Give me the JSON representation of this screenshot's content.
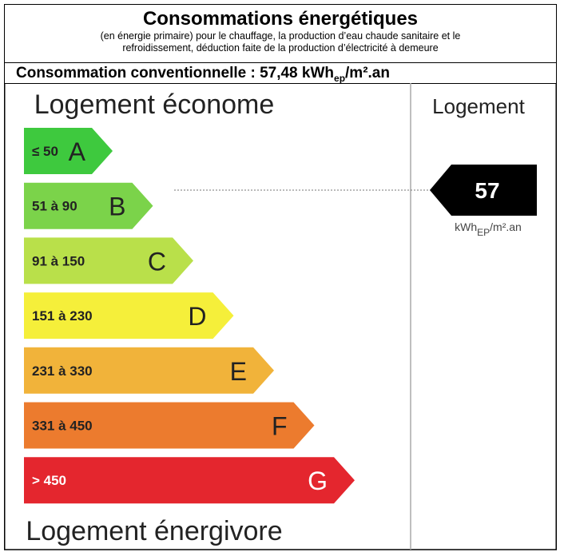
{
  "header": {
    "title": "Consommations énergétiques",
    "subtitle_line1": "(en énergie primaire) pour le chauffage, la production d’eau chaude sanitaire et le",
    "subtitle_line2": "refroidissement, déduction faite de la production d’électricité à demeure"
  },
  "consumption": {
    "label": "Consommation conventionnelle : 57,48 kWh",
    "sub": "ep",
    "suffix": "/m².an"
  },
  "label": {
    "top": "Logement économe",
    "bottom": "Logement énergivore",
    "column": "Logement",
    "bands": [
      {
        "range": "≤ 50",
        "letter": "A",
        "color": "#3ec93e"
      },
      {
        "range": "51 à 90",
        "letter": "B",
        "color": "#7bd34a"
      },
      {
        "range": "91 à 150",
        "letter": "C",
        "color": "#b9e04a"
      },
      {
        "range": "151 à 230",
        "letter": "D",
        "color": "#f5ef3a"
      },
      {
        "range": "231 à 330",
        "letter": "E",
        "color": "#f1b33a"
      },
      {
        "range": "331 à 450",
        "letter": "F",
        "color": "#ec7b2e"
      },
      {
        "range": "> 450",
        "letter": "G",
        "color": "#e4262e"
      }
    ],
    "value": "57",
    "unit": "kWh",
    "unit_sub": "EP",
    "unit_suffix": "/m².an"
  }
}
